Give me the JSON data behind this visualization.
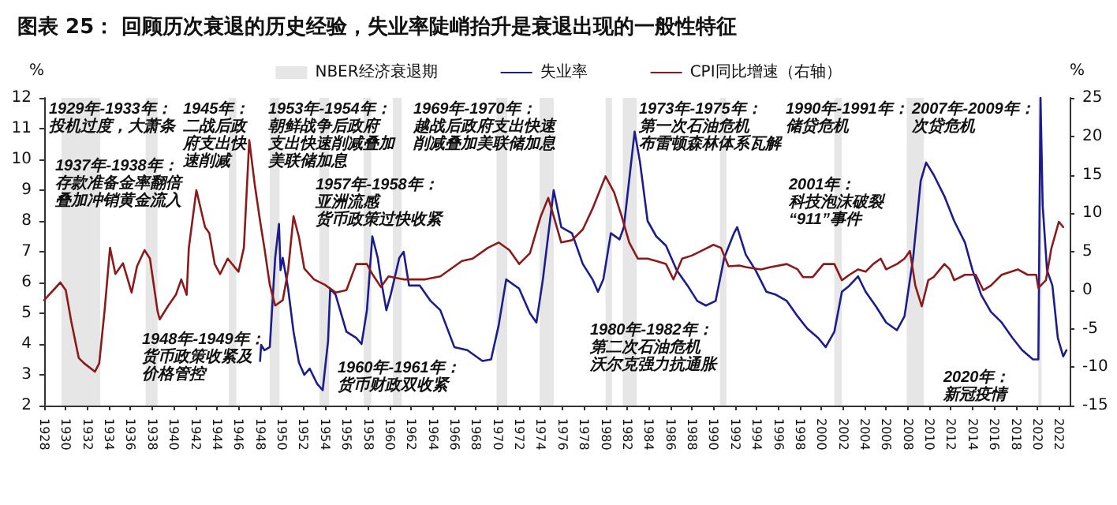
{
  "chart_data": {
    "type": "line",
    "title": "图表 25： 回顾历次衰退的历史经验，失业率陡峭抬升是衰退出现的一般性特征",
    "ylabel": "%",
    "y2label": "%",
    "xlim": [
      1928,
      2023
    ],
    "xticks": [
      1928,
      1930,
      1932,
      1934,
      1936,
      1938,
      1940,
      1942,
      1944,
      1946,
      1948,
      1950,
      1952,
      1954,
      1956,
      1958,
      1960,
      1962,
      1964,
      1966,
      1968,
      1970,
      1972,
      1974,
      1976,
      1978,
      1980,
      1982,
      1984,
      1986,
      1988,
      1990,
      1992,
      1994,
      1996,
      1998,
      2000,
      2002,
      2004,
      2006,
      2008,
      2010,
      2012,
      2014,
      2016,
      2018,
      2020,
      2022
    ],
    "ylim": [
      2,
      12
    ],
    "yticks": [
      2,
      3,
      4,
      5,
      6,
      7,
      8,
      9,
      10,
      11,
      12
    ],
    "y2lim": [
      -15,
      25
    ],
    "y2ticks": [
      -15,
      -10,
      -5,
      0,
      5,
      10,
      15,
      20,
      25
    ],
    "legend": "top",
    "marker": "none",
    "line_style": "solid",
    "series": [
      {
        "name": "失业率",
        "color": "#1c1c8c",
        "x": [
          1948.0,
          1948.1,
          1948.4,
          1948.9,
          1949.4,
          1949.75,
          1949.9,
          1950.1,
          1950.6,
          1951.1,
          1951.6,
          1952.1,
          1952.6,
          1953.3,
          1953.8,
          1954.3,
          1954.5,
          1955.0,
          1956.0,
          1956.9,
          1957.4,
          1957.9,
          1958.4,
          1958.9,
          1959.2,
          1959.7,
          1960.1,
          1960.9,
          1961.3,
          1961.8,
          1962.8,
          1963.8,
          1964.7,
          1966.0,
          1967.2,
          1968.6,
          1969.4,
          1970.1,
          1970.8,
          1972.0,
          1973.0,
          1973.6,
          1974.2,
          1975.2,
          1975.9,
          1976.9,
          1977.9,
          1978.8,
          1979.3,
          1979.8,
          1980.5,
          1981.3,
          1981.7,
          1982.7,
          1983.2,
          1983.9,
          1984.7,
          1985.6,
          1986.6,
          1987.6,
          1988.5,
          1989.3,
          1990.2,
          1991.0,
          1991.9,
          1992.2,
          1993.0,
          1993.9,
          1994.9,
          1995.8,
          1996.8,
          1997.8,
          1998.7,
          1999.7,
          2000.4,
          2001.2,
          2001.9,
          2002.6,
          2003.4,
          2004.1,
          2005.1,
          2006.0,
          2007.0,
          2007.7,
          2008.5,
          2009.2,
          2009.7,
          2010.4,
          2011.4,
          2012.3,
          2013.3,
          2014.0,
          2014.8,
          2015.7,
          2016.7,
          2017.7,
          2018.6,
          2019.6,
          2020.1,
          2020.3,
          2020.5,
          2020.9,
          2021.4,
          2021.9,
          2022.4,
          2022.7
        ],
        "values": [
          3.45,
          3.97,
          3.8,
          3.9,
          6.8,
          7.9,
          6.4,
          6.8,
          5.8,
          4.4,
          3.4,
          3.0,
          3.2,
          2.7,
          2.5,
          4.1,
          5.8,
          5.6,
          4.4,
          4.2,
          4.0,
          5.1,
          7.5,
          6.8,
          6.1,
          5.1,
          5.6,
          6.8,
          7.0,
          5.9,
          5.9,
          5.4,
          5.1,
          3.9,
          3.8,
          3.45,
          3.5,
          4.6,
          6.1,
          5.8,
          5.0,
          4.7,
          6.1,
          9.0,
          7.8,
          7.6,
          6.6,
          6.1,
          5.7,
          6.1,
          7.6,
          7.4,
          7.8,
          10.9,
          9.9,
          8.0,
          7.5,
          7.2,
          6.4,
          5.9,
          5.4,
          5.25,
          5.4,
          6.8,
          7.6,
          7.8,
          6.9,
          6.4,
          5.7,
          5.6,
          5.4,
          4.9,
          4.5,
          4.2,
          3.9,
          4.4,
          5.7,
          5.9,
          6.2,
          5.7,
          5.2,
          4.7,
          4.45,
          4.9,
          6.8,
          9.3,
          9.9,
          9.5,
          8.8,
          8.0,
          7.3,
          6.4,
          5.6,
          5.05,
          4.7,
          4.2,
          3.8,
          3.5,
          3.5,
          12,
          8.5,
          6.4,
          5.9,
          4.2,
          3.6,
          3.8
        ]
      },
      {
        "name": "CPI同比增速（右轴）",
        "color": "#8b1a1a",
        "axis": "y2",
        "x": [
          1928.0,
          1929.5,
          1930.0,
          1930.5,
          1931.2,
          1931.7,
          1932.7,
          1933.1,
          1933.6,
          1934.1,
          1934.6,
          1935.3,
          1936.1,
          1936.6,
          1937.3,
          1937.8,
          1938.5,
          1938.7,
          1939.5,
          1940.2,
          1940.7,
          1941.2,
          1941.4,
          1942.1,
          1942.9,
          1943.3,
          1943.8,
          1944.3,
          1945.0,
          1946.0,
          1946.5,
          1947.0,
          1947.5,
          1948.0,
          1948.4,
          1948.9,
          1949.4,
          1950.1,
          1950.6,
          1951.1,
          1951.6,
          1952.1,
          1953.0,
          1954.0,
          1955.0,
          1956.0,
          1956.9,
          1957.9,
          1958.4,
          1959.2,
          1959.9,
          1961.3,
          1963.3,
          1964.7,
          1965.7,
          1966.7,
          1967.7,
          1969.1,
          1970.1,
          1971.1,
          1972.0,
          1973.0,
          1974.0,
          1974.7,
          1975.2,
          1975.9,
          1976.9,
          1977.9,
          1978.8,
          1980.0,
          1980.8,
          1981.5,
          1982.2,
          1983.0,
          1983.9,
          1984.7,
          1985.6,
          1986.3,
          1987.1,
          1988.0,
          1989.0,
          1990.0,
          1990.7,
          1991.4,
          1992.4,
          1993.0,
          1994.4,
          1995.3,
          1996.8,
          1997.8,
          1998.3,
          1999.2,
          2000.2,
          2001.2,
          2001.9,
          2002.6,
          2003.4,
          2004.1,
          2004.8,
          2005.5,
          2006.0,
          2007.0,
          2007.7,
          2008.2,
          2008.7,
          2009.3,
          2009.9,
          2010.4,
          2011.4,
          2011.9,
          2012.3,
          2013.3,
          2014.3,
          2015.0,
          2015.7,
          2016.7,
          2018.2,
          2019.1,
          2019.9,
          2020.1,
          2020.8,
          2021.3,
          2022.0,
          2022.4
        ],
        "values": [
          -1.3,
          1,
          0,
          -4,
          -8.8,
          -9.5,
          -10.6,
          -9.5,
          -2.6,
          5.5,
          2.1,
          3.5,
          -0.3,
          3.1,
          5.2,
          4.1,
          -2.7,
          -3.8,
          -2,
          -0.6,
          1.4,
          -0.6,
          5.5,
          13,
          8.2,
          7.4,
          3.4,
          2.1,
          4.1,
          2.4,
          5.5,
          19.5,
          13.8,
          9,
          5.5,
          0.7,
          -2,
          -1.3,
          2.6,
          9.6,
          6.9,
          2.8,
          1.4,
          0.7,
          -0.3,
          0,
          3.4,
          3.4,
          2.1,
          0.4,
          1.8,
          1.4,
          1.4,
          1.8,
          2.8,
          3.8,
          4.1,
          5.5,
          6.2,
          5.2,
          3.4,
          4.8,
          9.6,
          12,
          9.6,
          6.2,
          6.5,
          7.9,
          10.6,
          14.8,
          12.7,
          9.6,
          6.2,
          4.1,
          4.1,
          3.8,
          3.4,
          1.4,
          4.1,
          4.5,
          5.2,
          5.9,
          5.5,
          3.1,
          3.2,
          3,
          2.7,
          3,
          3.4,
          2.7,
          1.7,
          1.7,
          3.4,
          3.4,
          1.3,
          2,
          2.7,
          2.4,
          3.4,
          4.1,
          2.7,
          3.4,
          4.1,
          5.1,
          0.6,
          -2.1,
          1.3,
          1.7,
          3.4,
          2.7,
          1.3,
          2,
          2,
          0,
          0.6,
          2,
          2.7,
          2,
          2,
          0.3,
          1.3,
          5.4,
          8.9,
          8.2
        ]
      }
    ],
    "bands": [
      {
        "axis": "x",
        "from": 1929.6,
        "to": 1933.2,
        "color": "#e6e6e6",
        "label": "NBER经济衰退期"
      },
      {
        "axis": "x",
        "from": 1937.4,
        "to": 1938.5,
        "color": "#e6e6e6"
      },
      {
        "axis": "x",
        "from": 1945.1,
        "to": 1945.8,
        "color": "#e6e6e6"
      },
      {
        "axis": "x",
        "from": 1948.9,
        "to": 1949.8,
        "color": "#e6e6e6"
      },
      {
        "axis": "x",
        "from": 1953.5,
        "to": 1954.4,
        "color": "#e6e6e6"
      },
      {
        "axis": "x",
        "from": 1957.6,
        "to": 1958.3,
        "color": "#e6e6e6"
      },
      {
        "axis": "x",
        "from": 1960.3,
        "to": 1961.1,
        "color": "#e6e6e6"
      },
      {
        "axis": "x",
        "from": 1969.9,
        "to": 1970.9,
        "color": "#e6e6e6"
      },
      {
        "axis": "x",
        "from": 1973.9,
        "to": 1975.2,
        "color": "#e6e6e6"
      },
      {
        "axis": "x",
        "from": 1980.0,
        "to": 1980.6,
        "color": "#e6e6e6"
      },
      {
        "axis": "x",
        "from": 1981.6,
        "to": 1982.9,
        "color": "#e6e6e6"
      },
      {
        "axis": "x",
        "from": 1990.6,
        "to": 1991.2,
        "color": "#e6e6e6"
      },
      {
        "axis": "x",
        "from": 2001.2,
        "to": 2001.9,
        "color": "#e6e6e6"
      },
      {
        "axis": "x",
        "from": 2007.9,
        "to": 2009.5,
        "color": "#e6e6e6"
      },
      {
        "axis": "x",
        "from": 2020.1,
        "to": 2020.4,
        "color": "#e6e6e6"
      }
    ],
    "annotations": [
      "1929年-1933年：投机过度，大萧条",
      "1937年-1938年：存款准备金率翻倍叠加冲销黄金流入",
      "1945年：二战后政府支出快速削减",
      "1953年-1954年：朝鲜战争后政府支出快速削减叠加美联储加息",
      "1948年-1949年：货币政策收紧及价格管控",
      "1957年-1958年：亚洲流感货币政策过快收紧",
      "1960年-1961年：货币财政双收紧",
      "1969年-1970年：越战后政府支出快速削减叠加美联储加息",
      "1973年-1975年：第一次石油危机布雷顿森林体系瓦解",
      "1980年-1982年：第二次石油危机沃尔克强力抗通胀",
      "1990年-1991年：储贷危机",
      "2001年：科技泡沫破裂“911”事件",
      "2007年-2009年：次贷危机",
      "2020年：新冠疫情"
    ]
  }
}
